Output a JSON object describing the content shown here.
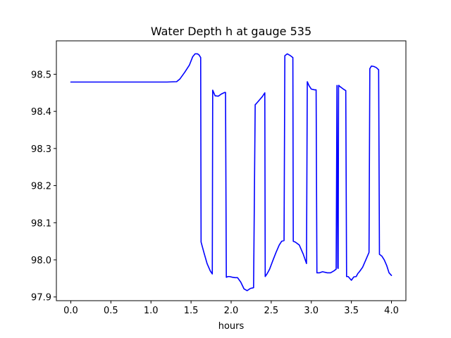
{
  "chart_data": {
    "type": "line",
    "title": "Water Depth h at gauge 535",
    "xlabel": "hours",
    "ylabel": "",
    "xlim": [
      -0.18,
      4.18
    ],
    "ylim": [
      97.89,
      98.59
    ],
    "xticks": [
      0.0,
      0.5,
      1.0,
      1.5,
      2.0,
      2.5,
      3.0,
      3.5,
      4.0
    ],
    "xtick_labels": [
      "0.0",
      "0.5",
      "1.0",
      "1.5",
      "2.0",
      "2.5",
      "3.0",
      "3.5",
      "4.0"
    ],
    "yticks": [
      97.9,
      98.0,
      98.1,
      98.2,
      98.3,
      98.4,
      98.5
    ],
    "ytick_labels": [
      "97.9",
      "98.0",
      "98.1",
      "98.2",
      "98.3",
      "98.4",
      "98.5"
    ],
    "grid": false,
    "series": [
      {
        "color": "#0000ff",
        "x": [
          0.0,
          0.3,
          0.6,
          0.9,
          1.2,
          1.32,
          1.36,
          1.42,
          1.48,
          1.52,
          1.55,
          1.58,
          1.6,
          1.62,
          1.625,
          1.66,
          1.7,
          1.74,
          1.765,
          1.77,
          1.8,
          1.84,
          1.88,
          1.92,
          1.93,
          1.94,
          1.96,
          1.98,
          2.02,
          2.05,
          2.08,
          2.12,
          2.16,
          2.2,
          2.24,
          2.28,
          2.3,
          2.31,
          2.35,
          2.39,
          2.42,
          2.425,
          2.45,
          2.48,
          2.52,
          2.56,
          2.6,
          2.63,
          2.66,
          2.67,
          2.7,
          2.74,
          2.77,
          2.775,
          2.8,
          2.85,
          2.9,
          2.94,
          2.95,
          2.97,
          3.0,
          3.04,
          3.06,
          3.07,
          3.1,
          3.14,
          3.2,
          3.24,
          3.28,
          3.31,
          3.32,
          3.33,
          3.335,
          3.34,
          3.345,
          3.35,
          3.4,
          3.43,
          3.44,
          3.46,
          3.5,
          3.53,
          3.56,
          3.58,
          3.6,
          3.64,
          3.68,
          3.72,
          3.73,
          3.75,
          3.78,
          3.81,
          3.84,
          3.85,
          3.88,
          3.91,
          3.94,
          3.97,
          4.0
        ],
        "y": [
          98.479,
          98.479,
          98.479,
          98.479,
          98.479,
          98.48,
          98.487,
          98.505,
          98.525,
          98.547,
          98.555,
          98.555,
          98.552,
          98.545,
          98.048,
          98.02,
          97.99,
          97.97,
          97.962,
          98.457,
          98.442,
          98.441,
          98.447,
          98.451,
          98.451,
          97.953,
          97.955,
          97.955,
          97.953,
          97.952,
          97.952,
          97.94,
          97.922,
          97.917,
          97.923,
          97.925,
          98.418,
          98.42,
          98.43,
          98.44,
          98.45,
          97.955,
          97.963,
          97.975,
          97.998,
          98.02,
          98.04,
          98.05,
          98.052,
          98.55,
          98.555,
          98.55,
          98.545,
          98.05,
          98.048,
          98.04,
          98.015,
          97.99,
          98.48,
          98.47,
          98.46,
          98.458,
          98.458,
          97.965,
          97.965,
          97.968,
          97.965,
          97.965,
          97.97,
          97.975,
          98.47,
          97.978,
          97.977,
          98.47,
          98.47,
          98.468,
          98.46,
          98.456,
          97.955,
          97.955,
          97.945,
          97.954,
          97.955,
          97.963,
          97.968,
          97.98,
          98.0,
          98.02,
          98.515,
          98.522,
          98.521,
          98.518,
          98.512,
          98.015,
          98.01,
          98.0,
          97.985,
          97.965,
          97.958
        ]
      }
    ]
  }
}
